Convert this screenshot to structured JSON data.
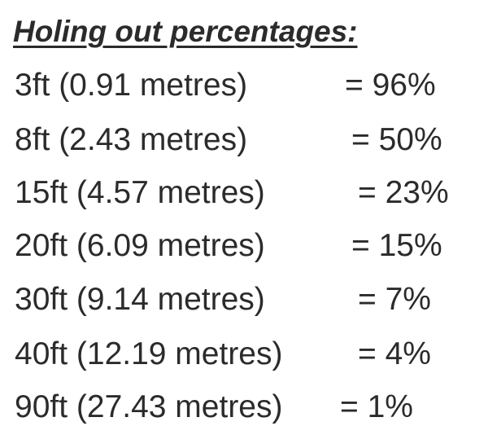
{
  "title": "Holing out percentages:",
  "rows": [
    {
      "distance": "3ft (0.91 metres)",
      "percentage": "= 96%"
    },
    {
      "distance": "8ft (2.43 metres)",
      "percentage": "= 50%"
    },
    {
      "distance": "15ft (4.57 metres)",
      "percentage": "= 23%"
    },
    {
      "distance": "20ft (6.09 metres)",
      "percentage": "= 15%"
    },
    {
      "distance": "30ft (9.14 metres)",
      "percentage": "= 7%"
    },
    {
      "distance": "40ft (12.19 metres)",
      "percentage": "= 4%"
    },
    {
      "distance": "90ft (27.43 metres)",
      "percentage": "= 1%"
    }
  ]
}
